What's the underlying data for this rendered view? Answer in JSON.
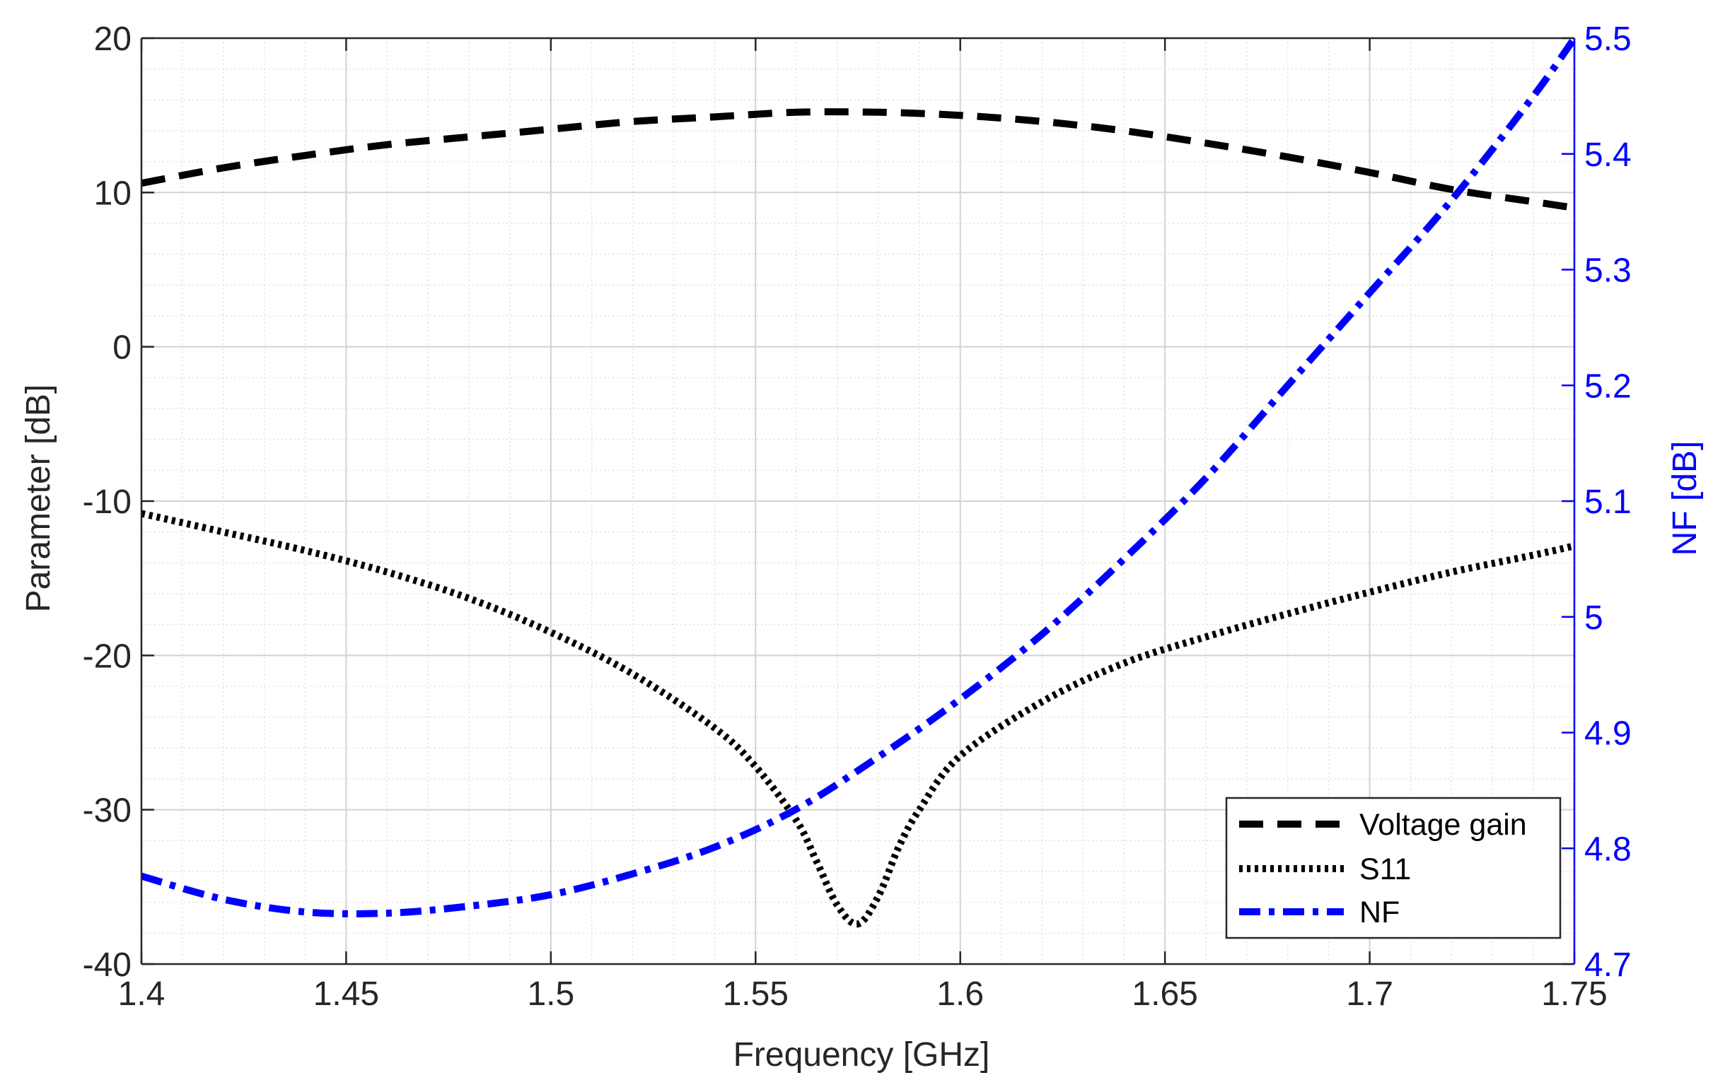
{
  "chart_data": {
    "type": "line",
    "xlabel": "Frequency [GHz]",
    "ylabel_left": "Parameter [dB]",
    "ylabel_right": "NF [dB]",
    "xlim": [
      1.4,
      1.75
    ],
    "ylim_left": [
      -40,
      20
    ],
    "ylim_right": [
      4.7,
      5.5
    ],
    "x_ticks": [
      "1.4",
      "1.45",
      "1.5",
      "1.55",
      "1.6",
      "1.65",
      "1.7",
      "1.75"
    ],
    "y_left_ticks": [
      "20",
      "10",
      "0",
      "-10",
      "-20",
      "-30",
      "-40"
    ],
    "y_right_ticks": [
      "5.5",
      "5.4",
      "5.3",
      "5.2",
      "5.1",
      "5",
      "4.9",
      "4.8",
      "4.7"
    ],
    "grid": true,
    "minor_grid": true,
    "legend_position": "bottom-right",
    "colors": {
      "right_axis": "#0000ff",
      "voltage_gain": "#000000",
      "s11": "#000000",
      "nf": "#0000ff"
    },
    "series": [
      {
        "name": "Voltage gain",
        "axis": "left",
        "style": "dashed",
        "x": [
          1.4,
          1.42,
          1.44,
          1.46,
          1.48,
          1.5,
          1.52,
          1.54,
          1.56,
          1.58,
          1.6,
          1.62,
          1.64,
          1.66,
          1.68,
          1.7,
          1.72,
          1.74,
          1.75
        ],
        "y": [
          10.6,
          11.6,
          12.4,
          13.1,
          13.6,
          14.1,
          14.6,
          14.9,
          15.2,
          15.2,
          15.0,
          14.6,
          14.0,
          13.2,
          12.3,
          11.3,
          10.2,
          9.4,
          9.0
        ]
      },
      {
        "name": "S11",
        "axis": "left",
        "style": "dotted",
        "x": [
          1.4,
          1.42,
          1.44,
          1.46,
          1.48,
          1.5,
          1.52,
          1.54,
          1.55,
          1.56,
          1.565,
          1.57,
          1.575,
          1.58,
          1.585,
          1.59,
          1.6,
          1.62,
          1.64,
          1.66,
          1.68,
          1.7,
          1.72,
          1.74,
          1.75
        ],
        "y": [
          -10.8,
          -12,
          -13.2,
          -14.6,
          -16.3,
          -18.5,
          -21.2,
          -24.7,
          -27.2,
          -30.7,
          -33.4,
          -36.2,
          -37.4,
          -35.6,
          -32.4,
          -30,
          -26.5,
          -23,
          -20.5,
          -18.8,
          -17.3,
          -15.9,
          -14.6,
          -13.5,
          -12.9
        ]
      },
      {
        "name": "NF",
        "axis": "right",
        "style": "dashdot",
        "x": [
          1.4,
          1.42,
          1.44,
          1.46,
          1.48,
          1.5,
          1.52,
          1.54,
          1.56,
          1.58,
          1.6,
          1.62,
          1.64,
          1.66,
          1.68,
          1.7,
          1.72,
          1.74,
          1.75
        ],
        "y": [
          4.776,
          4.756,
          4.745,
          4.744,
          4.75,
          4.76,
          4.778,
          4.801,
          4.834,
          4.879,
          4.929,
          4.985,
          5.05,
          5.12,
          5.2,
          5.28,
          5.36,
          5.45,
          5.5
        ]
      }
    ]
  }
}
